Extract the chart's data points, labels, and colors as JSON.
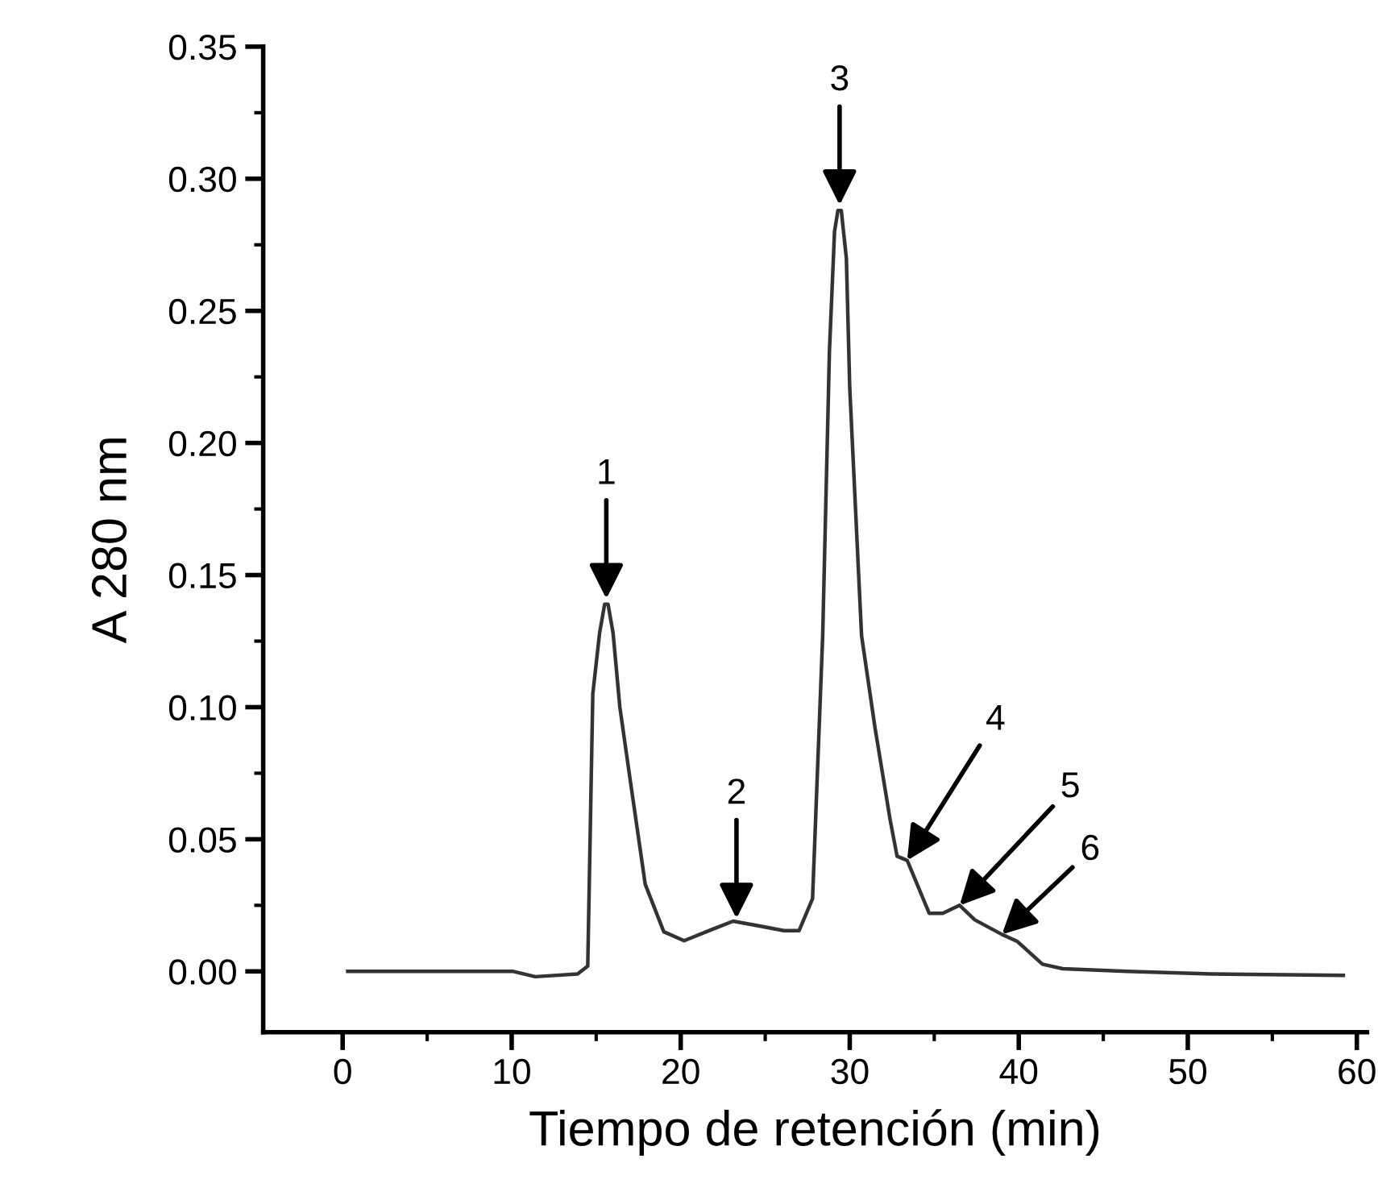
{
  "chart_data": {
    "type": "line",
    "xlabel": "Tiempo de retención (min)",
    "ylabel": "A 280 nm",
    "xlim": [
      -4.7,
      60.6
    ],
    "ylim": [
      -0.023,
      0.35
    ],
    "xticks": [
      0,
      10,
      20,
      30,
      40,
      50,
      60
    ],
    "yticks": [
      {
        "value": 0,
        "label": "0.00"
      },
      {
        "value": 0.05,
        "label": "0.05"
      },
      {
        "value": 0.1,
        "label": "0.10"
      },
      {
        "value": 0.15,
        "label": "0.15"
      },
      {
        "value": 0.2,
        "label": "0.20"
      },
      {
        "value": 0.25,
        "label": "0.25"
      },
      {
        "value": 0.3,
        "label": "0.30"
      },
      {
        "value": 0.35,
        "label": "0.35"
      }
    ],
    "grid": false,
    "legend": false,
    "marker": "none",
    "line_style": "solid",
    "series": [
      {
        "color": "#333333",
        "x": [
          0.3,
          10.1,
          11.4,
          13.9,
          14.5,
          14.8,
          15.2,
          15.5,
          15.7,
          16.0,
          16.4,
          17.0,
          17.9,
          19.0,
          20.2,
          21.9,
          23.1,
          24.8,
          26.1,
          27.0,
          27.8,
          28.4,
          28.8,
          29.1,
          29.3,
          29.5,
          29.8,
          30.0,
          30.7,
          31.5,
          32.4,
          32.8,
          33.4,
          34.7,
          35.5,
          36.5,
          37.4,
          39.0,
          39.9,
          41.4,
          42.6,
          46.4,
          51.4,
          59.2
        ],
        "values": [
          0.0,
          0.0,
          -0.002,
          -0.001,
          0.002,
          0.105,
          0.128,
          0.139,
          0.139,
          0.128,
          0.1,
          0.073,
          0.033,
          0.015,
          0.0116,
          0.016,
          0.019,
          0.017,
          0.0154,
          0.0154,
          0.0275,
          0.127,
          0.235,
          0.28,
          0.288,
          0.288,
          0.27,
          0.221,
          0.127,
          0.092,
          0.057,
          0.0436,
          0.042,
          0.022,
          0.022,
          0.025,
          0.0195,
          0.014,
          0.0114,
          0.0027,
          0.001,
          0.0,
          -0.001,
          -0.0015
        ]
      }
    ],
    "annotations": [
      {
        "text": "1",
        "x": 15.6,
        "y": 0.141
      },
      {
        "text": "2",
        "x": 23.3,
        "y": 0.02
      },
      {
        "text": "3",
        "x": 29.4,
        "y": 0.29
      },
      {
        "text": "4",
        "x": 33.4,
        "y": 0.042
      },
      {
        "text": "5",
        "x": 36.5,
        "y": 0.025
      },
      {
        "text": "6",
        "x": 39.0,
        "y": 0.014
      }
    ]
  }
}
